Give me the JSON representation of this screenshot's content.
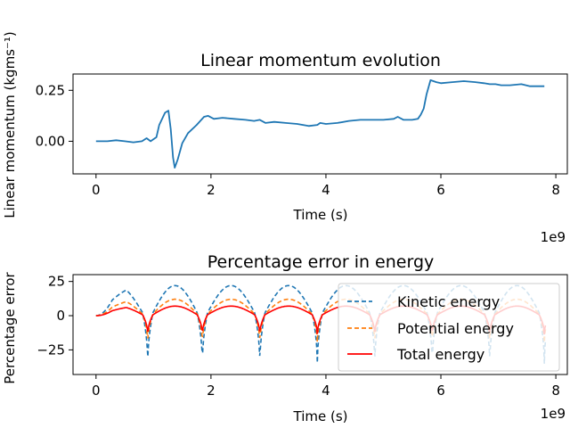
{
  "chart_data": [
    {
      "type": "line",
      "title": "Linear momentum evolution",
      "xlabel": "Time (s)",
      "ylabel": "Linear momentum (kgms⁻¹)",
      "x_offset_label": "1e9",
      "xlim": [
        -0.4,
        8.2
      ],
      "ylim": [
        -0.16,
        0.33
      ],
      "xticks": [
        0,
        2,
        4,
        6,
        8
      ],
      "xtick_labels": [
        "0",
        "2",
        "4",
        "6",
        "8"
      ],
      "yticks": [
        0.0,
        0.25
      ],
      "ytick_labels": [
        "0.00",
        "0.25"
      ],
      "grid": false,
      "colors": {
        "momentum": "#1f77b4"
      },
      "series": [
        {
          "x": [
            0,
            0.2,
            0.35,
            0.5,
            0.65,
            0.8,
            0.88,
            0.95,
            1.05,
            1.1,
            1.2,
            1.26,
            1.3,
            1.34,
            1.37,
            1.42,
            1.5,
            1.6,
            1.75,
            1.88,
            1.95,
            2.05,
            2.2,
            2.4,
            2.6,
            2.75,
            2.85,
            2.95,
            3.1,
            3.3,
            3.5,
            3.7,
            3.85,
            3.9,
            4.0,
            4.2,
            4.4,
            4.6,
            4.8,
            5.0,
            5.18,
            5.25,
            5.35,
            5.5,
            5.6,
            5.65,
            5.7,
            5.75,
            5.82,
            5.92,
            6.0,
            6.2,
            6.4,
            6.6,
            6.75,
            6.85,
            6.95,
            7.05,
            7.2,
            7.4,
            7.55,
            7.7,
            7.8
          ],
          "values": [
            0.0,
            0.0,
            0.005,
            0.0,
            -0.005,
            0.0,
            0.015,
            0.0,
            0.02,
            0.08,
            0.14,
            0.15,
            0.06,
            -0.08,
            -0.13,
            -0.09,
            -0.01,
            0.04,
            0.08,
            0.12,
            0.125,
            0.11,
            0.115,
            0.11,
            0.105,
            0.1,
            0.105,
            0.09,
            0.095,
            0.09,
            0.085,
            0.075,
            0.08,
            0.09,
            0.085,
            0.09,
            0.1,
            0.105,
            0.105,
            0.105,
            0.11,
            0.12,
            0.105,
            0.105,
            0.11,
            0.13,
            0.16,
            0.23,
            0.3,
            0.29,
            0.285,
            0.29,
            0.295,
            0.29,
            0.285,
            0.28,
            0.28,
            0.275,
            0.275,
            0.28,
            0.27,
            0.27,
            0.27
          ]
        }
      ]
    },
    {
      "type": "line",
      "title": "Percentage error in energy",
      "xlabel": "Time (s)",
      "ylabel": "Percentage error",
      "x_offset_label": "1e9",
      "xlim": [
        -0.4,
        8.2
      ],
      "ylim": [
        -43,
        30
      ],
      "xticks": [
        0,
        2,
        4,
        6,
        8
      ],
      "xtick_labels": [
        "0",
        "2",
        "4",
        "6",
        "8"
      ],
      "yticks": [
        -25,
        0,
        25
      ],
      "ytick_labels": [
        "−25",
        "0",
        "25"
      ],
      "grid": false,
      "legend_position": "lower-right",
      "period": 1.0,
      "dip_centers": [
        0.9,
        1.85,
        2.85,
        3.85,
        4.85,
        5.85,
        6.85,
        7.8
      ],
      "colors": {
        "kinetic": "#1f77b4",
        "potential": "#ff7f0e",
        "total": "#ff0000"
      },
      "series": [
        {
          "name": "Kinetic energy",
          "style": "dashed",
          "peak": 22,
          "dip": -36
        },
        {
          "name": "Potential energy",
          "style": "dashed",
          "peak": 12,
          "dip": -20
        },
        {
          "name": "Total energy",
          "style": "solid",
          "peak": 7,
          "dip": -14
        }
      ]
    }
  ]
}
